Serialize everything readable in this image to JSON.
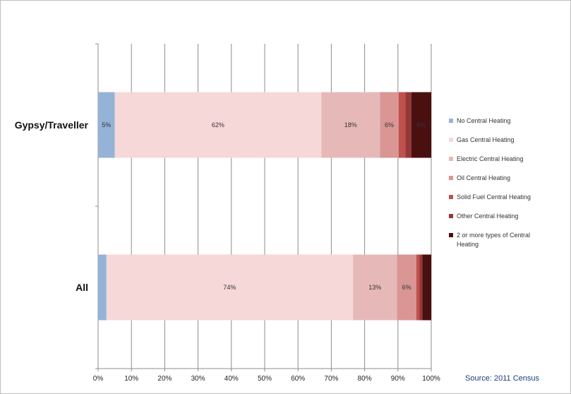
{
  "chart_data": {
    "type": "bar",
    "orientation": "horizontal",
    "stacked": "percent",
    "categories": [
      "Gypsy/Traveller",
      "All"
    ],
    "series": [
      {
        "name": "No Central Heating",
        "color": "#95b3d7",
        "values": [
          5,
          2.5
        ]
      },
      {
        "name": "Gas Central Heating",
        "color": "#f6d8d8",
        "values": [
          62,
          74
        ]
      },
      {
        "name": "Electric Central Heating",
        "color": "#e6b9b8",
        "values": [
          17.6,
          13.2
        ]
      },
      {
        "name": "Oil Central Heating",
        "color": "#d99694",
        "values": [
          5.6,
          5.8
        ]
      },
      {
        "name": "Solid Fuel Central Heating",
        "color": "#c0504d",
        "values": [
          2,
          1
        ]
      },
      {
        "name": "Other Central Heating",
        "color": "#953735",
        "values": [
          1.8,
          0.8
        ]
      },
      {
        "name": "2 or more types of Central Heating",
        "color": "#4a1010",
        "values": [
          6,
          2.7
        ]
      }
    ],
    "data_labels": [
      [
        "5%",
        "62%",
        "18%",
        "6%",
        "",
        "",
        "6%"
      ],
      [
        "",
        "74%",
        "13%",
        "6%",
        "",
        "",
        ""
      ]
    ],
    "x_ticks": [
      "0%",
      "10%",
      "20%",
      "30%",
      "40%",
      "50%",
      "60%",
      "70%",
      "80%",
      "90%",
      "100%"
    ],
    "xlim": [
      0,
      100
    ],
    "grid": "vertical",
    "legend": "right",
    "source": "Source: 2011 Census"
  }
}
